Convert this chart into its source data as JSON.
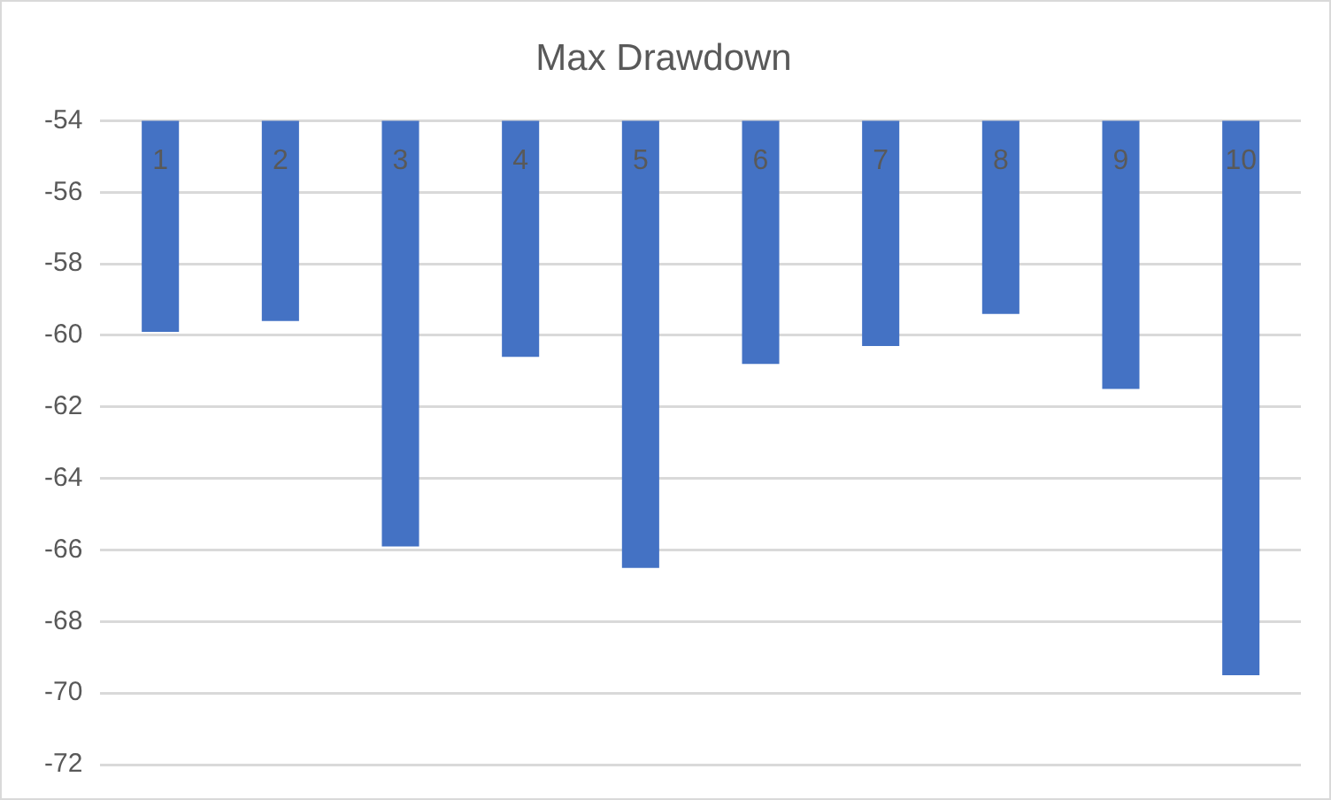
{
  "chart_data": {
    "type": "bar",
    "title": "Max Drawdown",
    "categories": [
      "1",
      "2",
      "3",
      "4",
      "5",
      "6",
      "7",
      "8",
      "9",
      "10"
    ],
    "values": [
      -59.9,
      -59.6,
      -65.9,
      -60.6,
      -66.5,
      -60.8,
      -60.3,
      -59.4,
      -61.5,
      -69.5
    ],
    "color": "#4472c4",
    "ylim": [
      -72,
      -54
    ],
    "yticks": [
      -72,
      -70,
      -68,
      -66,
      -64,
      -62,
      -60,
      -58,
      -56,
      -54
    ],
    "grid": "y"
  }
}
